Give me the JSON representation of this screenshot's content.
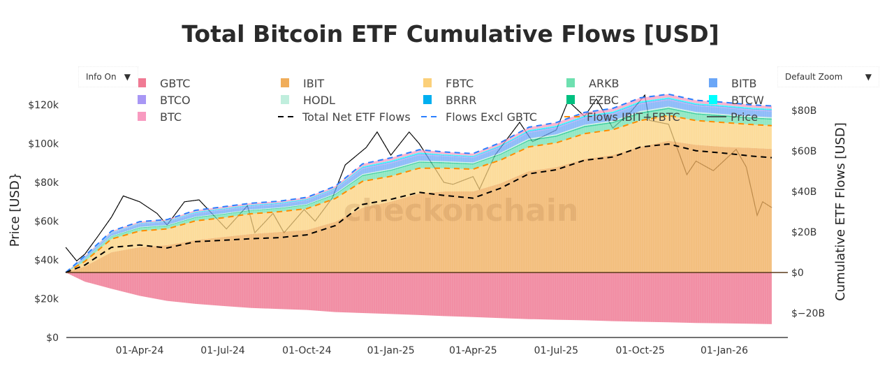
{
  "chart_data": {
    "type": "area",
    "title": "Total Bitcoin ETF Cumulative Flows [USD]",
    "ylabel_left": "Price [USD}",
    "ylabel_right": "Cumulative ETF Flows [USD]",
    "watermark": "checkonchain",
    "ylim_left": [
      0,
      120000
    ],
    "ylim_right": [
      -30,
      90
    ],
    "unit_right": "USD billions",
    "grid": false,
    "legend_placement": "top",
    "left_ticks": [
      {
        "value": 0,
        "label": "$0"
      },
      {
        "value": 20000,
        "label": "$20k"
      },
      {
        "value": 40000,
        "label": "$40k"
      },
      {
        "value": 60000,
        "label": "$60k"
      },
      {
        "value": 80000,
        "label": "$80k"
      },
      {
        "value": 100000,
        "label": "$100k"
      },
      {
        "value": 120000,
        "label": "$120k"
      }
    ],
    "right_ticks": [
      {
        "value": -20,
        "label": "$−20B"
      },
      {
        "value": 0,
        "label": "$0"
      },
      {
        "value": 20,
        "label": "$20B"
      },
      {
        "value": 40,
        "label": "$40B"
      },
      {
        "value": 60,
        "label": "$60B"
      },
      {
        "value": 80,
        "label": "$80B"
      }
    ],
    "x_ticks": [
      {
        "date": "2024-04-01",
        "label": "01-Apr-24"
      },
      {
        "date": "2024-07-01",
        "label": "01-Jul-24"
      },
      {
        "date": "2024-10-01",
        "label": "01-Oct-24"
      },
      {
        "date": "2025-01-01",
        "label": "01-Jan-25"
      },
      {
        "date": "2025-04-01",
        "label": "01-Apr-25"
      },
      {
        "date": "2025-07-01",
        "label": "01-Jul-25"
      },
      {
        "date": "2025-10-01",
        "label": "01-Oct-25"
      },
      {
        "date": "2026-01-01",
        "label": "01-Jan-26"
      }
    ],
    "x": [
      "2024-01-11",
      "2024-02-01",
      "2024-03-01",
      "2024-04-01",
      "2024-05-01",
      "2024-06-01",
      "2024-07-01",
      "2024-08-01",
      "2024-09-01",
      "2024-10-01",
      "2024-11-01",
      "2024-12-01",
      "2025-01-01",
      "2025-02-01",
      "2025-03-01",
      "2025-04-01",
      "2025-05-01",
      "2025-06-01",
      "2025-07-01",
      "2025-08-01",
      "2025-09-01",
      "2025-10-01",
      "2025-11-01",
      "2025-12-01",
      "2026-01-01",
      "2026-02-01",
      "2026-02-22"
    ],
    "series": [
      {
        "name": "GBTC",
        "color": "#f07a94",
        "values": [
          0,
          -4.5,
          -8,
          -11.5,
          -14,
          -15.5,
          -16.5,
          -17.5,
          -18,
          -18.5,
          -19.5,
          -20,
          -20.5,
          -21,
          -21.5,
          -22,
          -22.5,
          -23,
          -23.3,
          -23.6,
          -24,
          -24.3,
          -24.6,
          -24.9,
          -25.1,
          -25.3,
          -25.5
        ]
      },
      {
        "name": "IBIT",
        "color": "#f0ad5a",
        "values": [
          0,
          3,
          10,
          12.5,
          13.5,
          16,
          17.5,
          19,
          20,
          21,
          25,
          32,
          35,
          39,
          40,
          40,
          44,
          50,
          52,
          56,
          58,
          62,
          65,
          63,
          62,
          61.5,
          61
        ]
      },
      {
        "name": "FBTC",
        "color": "#fbd07a",
        "values": [
          0,
          2.5,
          6.5,
          8,
          8,
          9.5,
          9.5,
          10,
          10,
          10.5,
          11.5,
          13,
          12.5,
          12.5,
          11.5,
          11,
          11.5,
          12,
          12,
          12.5,
          12.5,
          13,
          12.5,
          12,
          12,
          11.5,
          11.5
        ]
      },
      {
        "name": "ARKB",
        "color": "#6ee0b0",
        "values": [
          0,
          0.8,
          1.2,
          1.4,
          1.4,
          1.5,
          1.6,
          1.5,
          1.5,
          1.7,
          1.8,
          2.6,
          2.7,
          2.7,
          2.4,
          2.3,
          2.6,
          2.9,
          3,
          3.2,
          3.2,
          3.3,
          3.2,
          3,
          3,
          2.9,
          2.9
        ]
      },
      {
        "name": "EZBC",
        "color": "#00c080",
        "values": [
          0,
          0.2,
          0.2,
          0.3,
          0.3,
          0.3,
          0.3,
          0.3,
          0.3,
          0.3,
          0.4,
          0.5,
          0.5,
          0.5,
          0.5,
          0.5,
          0.5,
          0.6,
          0.6,
          0.6,
          0.6,
          0.7,
          0.6,
          0.6,
          0.6,
          0.6,
          0.6
        ]
      },
      {
        "name": "HODL",
        "color": "#c0eedd",
        "values": [
          0,
          0.2,
          0.2,
          0.3,
          0.3,
          0.3,
          0.3,
          0.3,
          0.3,
          0.3,
          0.4,
          0.5,
          0.5,
          0.5,
          0.5,
          0.5,
          0.5,
          0.6,
          0.6,
          0.6,
          0.6,
          0.7,
          0.6,
          0.6,
          0.6,
          0.6,
          0.6
        ]
      },
      {
        "name": "BITB",
        "color": "#6aa6f7",
        "values": [
          0,
          0.8,
          1.2,
          1.4,
          1.4,
          1.5,
          1.6,
          1.5,
          1.5,
          1.7,
          1.8,
          2.6,
          2.7,
          2.7,
          2.4,
          2.3,
          2.6,
          2.9,
          3,
          3.2,
          3.2,
          3.3,
          3.2,
          3,
          3,
          2.9,
          2.9
        ]
      },
      {
        "name": "BTCO",
        "color": "#a897f5",
        "values": [
          0,
          0.1,
          0.2,
          0.2,
          0.2,
          0.3,
          0.3,
          0.3,
          0.3,
          0.3,
          0.3,
          0.4,
          0.5,
          0.5,
          0.4,
          0.4,
          0.4,
          0.5,
          0.5,
          0.5,
          0.5,
          0.6,
          0.5,
          0.5,
          0.5,
          0.5,
          0.5
        ]
      },
      {
        "name": "BRRR",
        "color": "#00aff0",
        "values": [
          0,
          0.1,
          0.1,
          0.1,
          0.1,
          0.2,
          0.2,
          0.2,
          0.2,
          0.2,
          0.2,
          0.3,
          0.3,
          0.3,
          0.2,
          0.2,
          0.3,
          0.3,
          0.3,
          0.3,
          0.3,
          0.3,
          0.3,
          0.3,
          0.3,
          0.3,
          0.3
        ]
      },
      {
        "name": "BTCW",
        "color": "#00ffff",
        "values": [
          0,
          0.1,
          0.2,
          0.2,
          0.2,
          0.3,
          0.3,
          0.3,
          0.3,
          0.3,
          0.3,
          0.4,
          0.5,
          0.5,
          0.4,
          0.4,
          0.4,
          0.5,
          0.5,
          0.5,
          0.5,
          0.6,
          0.5,
          0.5,
          0.5,
          0.5,
          0.5
        ]
      },
      {
        "name": "BTC",
        "color": "#f89ac0",
        "values": [
          0,
          0.4,
          0.6,
          0.7,
          0.7,
          0.8,
          0.8,
          0.8,
          0.8,
          0.8,
          0.9,
          1.3,
          1.4,
          1.4,
          1.2,
          1.1,
          1.3,
          1.4,
          1.5,
          1.6,
          1.6,
          1.7,
          1.6,
          1.5,
          1.5,
          1.4,
          1.4
        ]
      }
    ],
    "lines": [
      {
        "name": "Total Net ETF Flows",
        "color": "#000000",
        "style": "dash",
        "derived": "sum of all ETFs"
      },
      {
        "name": "Flows Excl GBTC",
        "color": "#2a7fff",
        "style": "dash",
        "derived": "sum excluding GBTC"
      },
      {
        "name": "Flows IBIT+FBTC",
        "color": "#ff8c00",
        "style": "dash",
        "derived": "IBIT + FBTC"
      }
    ],
    "price": {
      "name": "Price",
      "color": "#000000",
      "x": [
        "2024-01-11",
        "2024-01-23",
        "2024-02-01",
        "2024-02-15",
        "2024-03-01",
        "2024-03-14",
        "2024-04-01",
        "2024-04-20",
        "2024-05-01",
        "2024-05-20",
        "2024-06-05",
        "2024-07-05",
        "2024-07-28",
        "2024-08-05",
        "2024-08-25",
        "2024-09-06",
        "2024-09-28",
        "2024-10-10",
        "2024-10-29",
        "2024-11-12",
        "2024-12-05",
        "2024-12-17",
        "2025-01-01",
        "2025-01-21",
        "2025-02-01",
        "2025-02-28",
        "2025-03-10",
        "2025-04-01",
        "2025-04-08",
        "2025-04-25",
        "2025-05-22",
        "2025-06-05",
        "2025-07-01",
        "2025-07-14",
        "2025-08-01",
        "2025-08-14",
        "2025-09-01",
        "2025-09-20",
        "2025-10-06",
        "2025-10-11",
        "2025-11-01",
        "2025-11-21",
        "2025-12-01",
        "2025-12-20",
        "2026-01-14",
        "2026-01-25",
        "2026-02-06",
        "2026-02-12",
        "2026-02-22"
      ],
      "values": [
        46500,
        39500,
        43000,
        52000,
        62000,
        73000,
        70000,
        64000,
        58000,
        70000,
        71000,
        56000,
        68000,
        54000,
        64000,
        54000,
        66000,
        60000,
        72000,
        89000,
        98000,
        106000,
        94000,
        106000,
        100000,
        80000,
        79000,
        83000,
        76500,
        94000,
        111000,
        101000,
        107000,
        122000,
        114000,
        123000,
        108000,
        116000,
        125000,
        112000,
        110000,
        84000,
        91000,
        86000,
        97000,
        88000,
        63000,
        70000,
        67000
      ]
    }
  },
  "controls": {
    "info_dropdown": "Info On",
    "zoom_dropdown": "Default Zoom",
    "caret": "▼"
  }
}
